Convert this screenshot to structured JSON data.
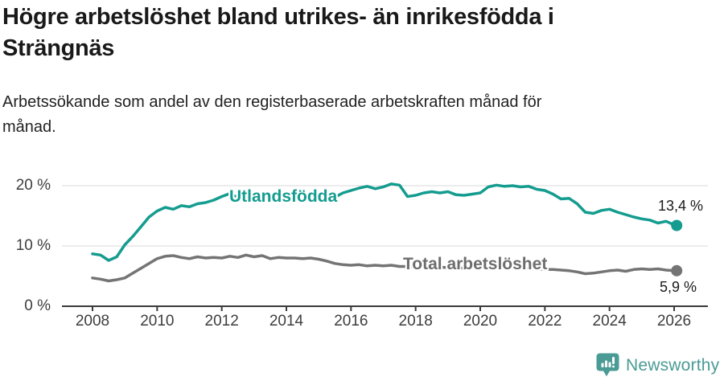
{
  "chart_data": {
    "type": "line",
    "title": "Högre arbetslöshet bland utrikes- än inrikesfödda i\nSträngnäs",
    "subtitle": "Arbetssökande som andel av den registerbaserade arbetskraften månad för\nmånad.",
    "xlabel": "",
    "ylabel": "",
    "legend_position": "inline-labels",
    "grid": "horizontal",
    "ylim": [
      0,
      23
    ],
    "xlim": [
      2007,
      2027
    ],
    "x_ticks": [
      2008,
      2010,
      2012,
      2014,
      2016,
      2018,
      2020,
      2022,
      2024,
      2026
    ],
    "y_ticks": [
      {
        "value": 0,
        "label": "0 %"
      },
      {
        "value": 10,
        "label": "10 %"
      },
      {
        "value": 20,
        "label": "20 %"
      }
    ],
    "x": [
      2008,
      2008.25,
      2008.5,
      2008.75,
      2009,
      2009.25,
      2009.5,
      2009.75,
      2010,
      2010.25,
      2010.5,
      2010.75,
      2011,
      2011.25,
      2011.5,
      2011.75,
      2012,
      2012.25,
      2012.5,
      2012.75,
      2013,
      2013.25,
      2013.5,
      2013.75,
      2014,
      2014.25,
      2014.5,
      2014.75,
      2015,
      2015.25,
      2015.5,
      2015.75,
      2016,
      2016.25,
      2016.5,
      2016.75,
      2017,
      2017.25,
      2017.5,
      2017.75,
      2018,
      2018.25,
      2018.5,
      2018.75,
      2019,
      2019.25,
      2019.5,
      2019.75,
      2020,
      2020.25,
      2020.5,
      2020.75,
      2021,
      2021.25,
      2021.5,
      2021.75,
      2022,
      2022.25,
      2022.5,
      2022.75,
      2023,
      2023.25,
      2023.5,
      2023.75,
      2024,
      2024.25,
      2024.5,
      2024.75,
      2025,
      2025.25,
      2025.5,
      2025.75,
      2026,
      2026.08
    ],
    "series": [
      {
        "name": "Utlandsfödda",
        "color": "#149c8f",
        "end_value": 13.4,
        "end_label": "13,4 %",
        "values": [
          8.7,
          8.5,
          7.6,
          8.2,
          10.2,
          11.6,
          13.2,
          14.8,
          15.8,
          16.4,
          16.1,
          16.7,
          16.5,
          17.0,
          17.2,
          17.6,
          18.2,
          18.7,
          18.0,
          18.3,
          17.7,
          18.2,
          17.8,
          18.1,
          18.3,
          17.8,
          17.3,
          17.7,
          18.0,
          18.3,
          18.1,
          18.8,
          19.2,
          19.6,
          19.9,
          19.5,
          19.8,
          20.3,
          20.1,
          18.2,
          18.4,
          18.8,
          19.0,
          18.8,
          19.0,
          18.5,
          18.4,
          18.6,
          18.8,
          19.8,
          20.1,
          19.9,
          20.0,
          19.8,
          19.9,
          19.4,
          19.2,
          18.6,
          17.8,
          17.9,
          17.0,
          15.6,
          15.4,
          15.9,
          16.1,
          15.6,
          15.2,
          14.8,
          14.5,
          14.3,
          13.8,
          14.1,
          13.5,
          13.4
        ]
      },
      {
        "name": "Total arbetslöshet",
        "color": "#747474",
        "end_value": 5.9,
        "end_label": "5,9 %",
        "values": [
          4.7,
          4.5,
          4.2,
          4.4,
          4.7,
          5.5,
          6.3,
          7.1,
          7.9,
          8.3,
          8.4,
          8.1,
          7.9,
          8.2,
          8.0,
          8.1,
          8.0,
          8.3,
          8.1,
          8.5,
          8.2,
          8.4,
          7.9,
          8.1,
          8.0,
          8.0,
          7.9,
          8.0,
          7.8,
          7.5,
          7.1,
          6.9,
          6.8,
          6.9,
          6.7,
          6.8,
          6.7,
          6.8,
          6.6,
          6.6,
          6.5,
          6.6,
          6.4,
          6.5,
          6.4,
          6.4,
          6.3,
          6.4,
          6.4,
          6.6,
          6.7,
          6.6,
          6.5,
          6.4,
          6.3,
          6.2,
          6.1,
          6.1,
          6.0,
          5.9,
          5.7,
          5.4,
          5.5,
          5.7,
          5.9,
          6.0,
          5.8,
          6.1,
          6.2,
          6.1,
          6.2,
          6.0,
          5.9,
          5.9
        ]
      }
    ],
    "style": {
      "grid_color": "#d9d9d9",
      "axis_color": "#3a3a3a",
      "tick_text_color": "#3d3d3d",
      "title_color": "#191919"
    }
  },
  "footer": {
    "brand": "Newsworthy",
    "brand_color": "#4a9b95",
    "logo_icon": "bar-chart-speech-bubble"
  }
}
